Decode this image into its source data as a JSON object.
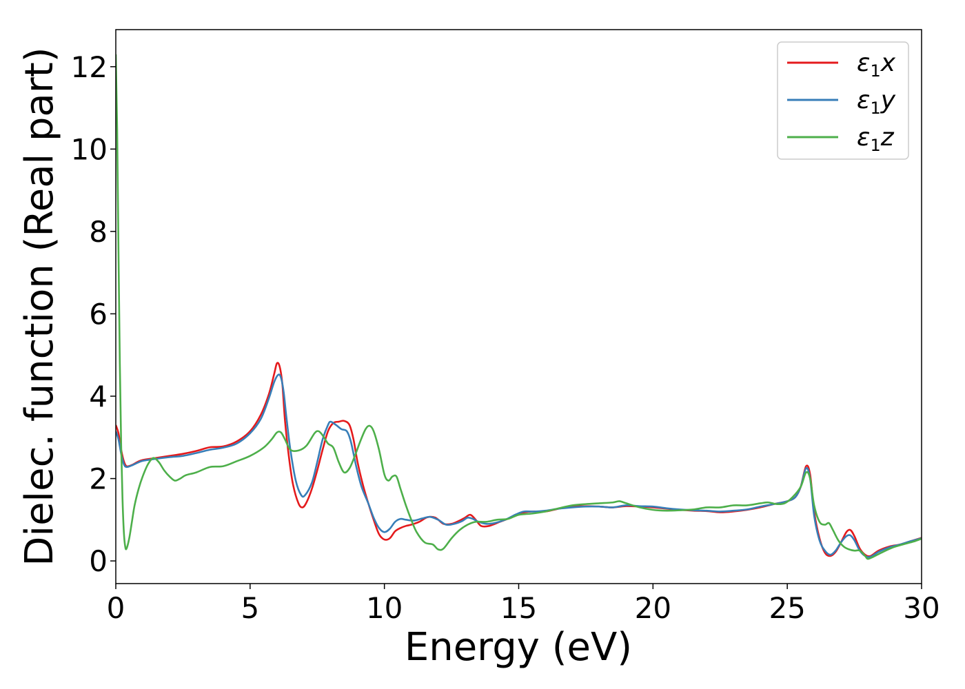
{
  "chart_data": {
    "type": "line",
    "xlabel": "Energy (eV)",
    "ylabel": "Dielec. function (Real part)",
    "xlim": [
      0,
      30
    ],
    "ylim": [
      -0.55,
      12.9
    ],
    "xticks": [
      0,
      5,
      10,
      15,
      20,
      25,
      30
    ],
    "yticks": [
      0,
      2,
      4,
      6,
      8,
      10,
      12
    ],
    "grid": false,
    "legend_position": "top-right",
    "series": [
      {
        "name": "ε1x",
        "symbol": "ε",
        "sub": "1",
        "suffix": "x",
        "color": "#e41a1c",
        "points": [
          [
            0,
            3.3
          ],
          [
            0.1,
            3.1
          ],
          [
            0.2,
            2.7
          ],
          [
            0.3,
            2.42
          ],
          [
            0.4,
            2.3
          ],
          [
            0.6,
            2.33
          ],
          [
            0.8,
            2.4
          ],
          [
            1.0,
            2.45
          ],
          [
            1.5,
            2.5
          ],
          [
            2,
            2.55
          ],
          [
            2.5,
            2.6
          ],
          [
            3,
            2.67
          ],
          [
            3.5,
            2.76
          ],
          [
            4,
            2.78
          ],
          [
            4.5,
            2.9
          ],
          [
            5,
            3.15
          ],
          [
            5.4,
            3.55
          ],
          [
            5.7,
            4.05
          ],
          [
            5.9,
            4.55
          ],
          [
            6.0,
            4.8
          ],
          [
            6.1,
            4.72
          ],
          [
            6.2,
            4.3
          ],
          [
            6.3,
            3.4
          ],
          [
            6.45,
            2.5
          ],
          [
            6.6,
            1.85
          ],
          [
            6.8,
            1.4
          ],
          [
            6.95,
            1.3
          ],
          [
            7.1,
            1.42
          ],
          [
            7.3,
            1.75
          ],
          [
            7.5,
            2.2
          ],
          [
            7.7,
            2.7
          ],
          [
            7.9,
            3.15
          ],
          [
            8.1,
            3.35
          ],
          [
            8.3,
            3.38
          ],
          [
            8.5,
            3.4
          ],
          [
            8.7,
            3.3
          ],
          [
            8.85,
            2.95
          ],
          [
            9.0,
            2.4
          ],
          [
            9.2,
            1.85
          ],
          [
            9.4,
            1.4
          ],
          [
            9.6,
            1.0
          ],
          [
            9.8,
            0.65
          ],
          [
            10.0,
            0.52
          ],
          [
            10.2,
            0.55
          ],
          [
            10.4,
            0.72
          ],
          [
            10.6,
            0.8
          ],
          [
            10.8,
            0.85
          ],
          [
            11.0,
            0.88
          ],
          [
            11.3,
            0.95
          ],
          [
            11.6,
            1.06
          ],
          [
            11.9,
            1.05
          ],
          [
            12.2,
            0.9
          ],
          [
            12.5,
            0.9
          ],
          [
            12.8,
            0.98
          ],
          [
            13.0,
            1.05
          ],
          [
            13.2,
            1.12
          ],
          [
            13.4,
            1.0
          ],
          [
            13.6,
            0.85
          ],
          [
            13.9,
            0.85
          ],
          [
            14.3,
            0.95
          ],
          [
            14.7,
            1.05
          ],
          [
            15.0,
            1.15
          ],
          [
            15.5,
            1.2
          ],
          [
            16,
            1.2
          ],
          [
            16.5,
            1.27
          ],
          [
            17,
            1.32
          ],
          [
            17.5,
            1.33
          ],
          [
            18,
            1.32
          ],
          [
            18.5,
            1.3
          ],
          [
            19,
            1.33
          ],
          [
            19.5,
            1.32
          ],
          [
            20,
            1.3
          ],
          [
            20.5,
            1.27
          ],
          [
            21,
            1.24
          ],
          [
            21.5,
            1.22
          ],
          [
            22,
            1.21
          ],
          [
            22.5,
            1.18
          ],
          [
            23,
            1.2
          ],
          [
            23.5,
            1.24
          ],
          [
            24,
            1.3
          ],
          [
            24.5,
            1.38
          ],
          [
            25,
            1.45
          ],
          [
            25.3,
            1.55
          ],
          [
            25.5,
            1.8
          ],
          [
            25.7,
            2.3
          ],
          [
            25.85,
            2.1
          ],
          [
            26.0,
            1.2
          ],
          [
            26.2,
            0.55
          ],
          [
            26.4,
            0.2
          ],
          [
            26.6,
            0.12
          ],
          [
            26.8,
            0.22
          ],
          [
            27.0,
            0.45
          ],
          [
            27.2,
            0.7
          ],
          [
            27.35,
            0.75
          ],
          [
            27.5,
            0.6
          ],
          [
            27.7,
            0.3
          ],
          [
            27.9,
            0.15
          ],
          [
            28.1,
            0.12
          ],
          [
            28.4,
            0.25
          ],
          [
            28.8,
            0.35
          ],
          [
            29.2,
            0.4
          ],
          [
            29.6,
            0.48
          ],
          [
            30,
            0.56
          ]
        ]
      },
      {
        "name": "ε1y",
        "symbol": "ε",
        "sub": "1",
        "suffix": "y",
        "color": "#377eb8",
        "points": [
          [
            0,
            3.15
          ],
          [
            0.1,
            2.95
          ],
          [
            0.2,
            2.6
          ],
          [
            0.3,
            2.35
          ],
          [
            0.4,
            2.28
          ],
          [
            0.6,
            2.32
          ],
          [
            0.8,
            2.38
          ],
          [
            1.0,
            2.43
          ],
          [
            1.5,
            2.48
          ],
          [
            2,
            2.52
          ],
          [
            2.5,
            2.55
          ],
          [
            3,
            2.62
          ],
          [
            3.5,
            2.7
          ],
          [
            4,
            2.75
          ],
          [
            4.5,
            2.85
          ],
          [
            5,
            3.1
          ],
          [
            5.4,
            3.45
          ],
          [
            5.7,
            3.95
          ],
          [
            5.9,
            4.35
          ],
          [
            6.05,
            4.52
          ],
          [
            6.15,
            4.45
          ],
          [
            6.25,
            4.1
          ],
          [
            6.35,
            3.5
          ],
          [
            6.5,
            2.7
          ],
          [
            6.7,
            1.95
          ],
          [
            6.9,
            1.6
          ],
          [
            7.05,
            1.6
          ],
          [
            7.3,
            1.9
          ],
          [
            7.5,
            2.4
          ],
          [
            7.7,
            2.95
          ],
          [
            7.9,
            3.3
          ],
          [
            8.0,
            3.38
          ],
          [
            8.2,
            3.3
          ],
          [
            8.4,
            3.2
          ],
          [
            8.6,
            3.15
          ],
          [
            8.75,
            2.9
          ],
          [
            8.95,
            2.3
          ],
          [
            9.15,
            1.8
          ],
          [
            9.4,
            1.4
          ],
          [
            9.6,
            1.05
          ],
          [
            9.8,
            0.8
          ],
          [
            10.0,
            0.7
          ],
          [
            10.2,
            0.78
          ],
          [
            10.4,
            0.95
          ],
          [
            10.6,
            1.02
          ],
          [
            10.8,
            1.0
          ],
          [
            11.1,
            0.98
          ],
          [
            11.4,
            1.03
          ],
          [
            11.7,
            1.07
          ],
          [
            12.0,
            1.0
          ],
          [
            12.3,
            0.88
          ],
          [
            12.6,
            0.9
          ],
          [
            12.9,
            0.97
          ],
          [
            13.1,
            1.05
          ],
          [
            13.3,
            1.02
          ],
          [
            13.5,
            0.95
          ],
          [
            13.8,
            0.9
          ],
          [
            14.1,
            0.92
          ],
          [
            14.5,
            1.0
          ],
          [
            14.9,
            1.13
          ],
          [
            15.2,
            1.2
          ],
          [
            15.6,
            1.2
          ],
          [
            16,
            1.22
          ],
          [
            16.5,
            1.27
          ],
          [
            17,
            1.3
          ],
          [
            17.5,
            1.32
          ],
          [
            18,
            1.32
          ],
          [
            18.5,
            1.3
          ],
          [
            19,
            1.35
          ],
          [
            19.5,
            1.33
          ],
          [
            20,
            1.32
          ],
          [
            20.5,
            1.28
          ],
          [
            21,
            1.25
          ],
          [
            21.5,
            1.23
          ],
          [
            22,
            1.22
          ],
          [
            22.5,
            1.2
          ],
          [
            23,
            1.22
          ],
          [
            23.5,
            1.25
          ],
          [
            24,
            1.32
          ],
          [
            24.5,
            1.38
          ],
          [
            25,
            1.45
          ],
          [
            25.3,
            1.55
          ],
          [
            25.5,
            1.8
          ],
          [
            25.7,
            2.25
          ],
          [
            25.85,
            2.0
          ],
          [
            26.0,
            1.1
          ],
          [
            26.2,
            0.5
          ],
          [
            26.4,
            0.25
          ],
          [
            26.6,
            0.15
          ],
          [
            26.8,
            0.25
          ],
          [
            27.0,
            0.45
          ],
          [
            27.2,
            0.6
          ],
          [
            27.35,
            0.62
          ],
          [
            27.5,
            0.5
          ],
          [
            27.7,
            0.25
          ],
          [
            27.9,
            0.12
          ],
          [
            28.1,
            0.1
          ],
          [
            28.4,
            0.22
          ],
          [
            28.8,
            0.33
          ],
          [
            29.2,
            0.4
          ],
          [
            29.6,
            0.48
          ],
          [
            30,
            0.55
          ]
        ]
      },
      {
        "name": "ε1z",
        "symbol": "ε",
        "sub": "1",
        "suffix": "z",
        "color": "#4daf4a",
        "points": [
          [
            0,
            12.3
          ],
          [
            0.05,
            10.5
          ],
          [
            0.1,
            7.5
          ],
          [
            0.15,
            4.8
          ],
          [
            0.2,
            2.8
          ],
          [
            0.25,
            1.5
          ],
          [
            0.3,
            0.7
          ],
          [
            0.35,
            0.35
          ],
          [
            0.4,
            0.3
          ],
          [
            0.5,
            0.55
          ],
          [
            0.6,
            0.95
          ],
          [
            0.7,
            1.35
          ],
          [
            0.85,
            1.75
          ],
          [
            1.0,
            2.05
          ],
          [
            1.2,
            2.35
          ],
          [
            1.4,
            2.5
          ],
          [
            1.6,
            2.4
          ],
          [
            1.8,
            2.2
          ],
          [
            2.0,
            2.05
          ],
          [
            2.2,
            1.95
          ],
          [
            2.4,
            2.0
          ],
          [
            2.6,
            2.08
          ],
          [
            3,
            2.15
          ],
          [
            3.5,
            2.28
          ],
          [
            4,
            2.3
          ],
          [
            4.5,
            2.42
          ],
          [
            5,
            2.55
          ],
          [
            5.5,
            2.75
          ],
          [
            5.8,
            2.95
          ],
          [
            6.0,
            3.12
          ],
          [
            6.15,
            3.12
          ],
          [
            6.3,
            2.95
          ],
          [
            6.5,
            2.7
          ],
          [
            6.8,
            2.68
          ],
          [
            7.1,
            2.8
          ],
          [
            7.4,
            3.1
          ],
          [
            7.55,
            3.15
          ],
          [
            7.7,
            3.05
          ],
          [
            7.9,
            2.85
          ],
          [
            8.1,
            2.75
          ],
          [
            8.3,
            2.4
          ],
          [
            8.5,
            2.15
          ],
          [
            8.7,
            2.25
          ],
          [
            8.9,
            2.55
          ],
          [
            9.1,
            2.9
          ],
          [
            9.3,
            3.2
          ],
          [
            9.45,
            3.28
          ],
          [
            9.6,
            3.15
          ],
          [
            9.8,
            2.7
          ],
          [
            10.0,
            2.1
          ],
          [
            10.15,
            1.95
          ],
          [
            10.3,
            2.05
          ],
          [
            10.45,
            2.05
          ],
          [
            10.6,
            1.75
          ],
          [
            10.8,
            1.35
          ],
          [
            11.0,
            1.0
          ],
          [
            11.2,
            0.7
          ],
          [
            11.5,
            0.45
          ],
          [
            11.8,
            0.4
          ],
          [
            12.0,
            0.28
          ],
          [
            12.2,
            0.3
          ],
          [
            12.5,
            0.55
          ],
          [
            12.8,
            0.75
          ],
          [
            13.1,
            0.88
          ],
          [
            13.4,
            0.95
          ],
          [
            13.8,
            0.95
          ],
          [
            14.2,
            1.0
          ],
          [
            14.6,
            1.02
          ],
          [
            15,
            1.12
          ],
          [
            15.5,
            1.15
          ],
          [
            16,
            1.2
          ],
          [
            16.5,
            1.28
          ],
          [
            17,
            1.35
          ],
          [
            17.5,
            1.38
          ],
          [
            18,
            1.4
          ],
          [
            18.5,
            1.42
          ],
          [
            18.75,
            1.45
          ],
          [
            19,
            1.4
          ],
          [
            19.5,
            1.3
          ],
          [
            20,
            1.24
          ],
          [
            20.5,
            1.22
          ],
          [
            21,
            1.23
          ],
          [
            21.5,
            1.25
          ],
          [
            22,
            1.3
          ],
          [
            22.5,
            1.3
          ],
          [
            23,
            1.35
          ],
          [
            23.5,
            1.35
          ],
          [
            24,
            1.4
          ],
          [
            24.3,
            1.42
          ],
          [
            24.6,
            1.38
          ],
          [
            24.9,
            1.4
          ],
          [
            25.2,
            1.55
          ],
          [
            25.5,
            1.8
          ],
          [
            25.7,
            2.15
          ],
          [
            25.85,
            2.0
          ],
          [
            26.0,
            1.35
          ],
          [
            26.2,
            0.95
          ],
          [
            26.4,
            0.88
          ],
          [
            26.55,
            0.92
          ],
          [
            26.7,
            0.75
          ],
          [
            26.9,
            0.5
          ],
          [
            27.1,
            0.35
          ],
          [
            27.3,
            0.28
          ],
          [
            27.5,
            0.25
          ],
          [
            27.7,
            0.25
          ],
          [
            27.9,
            0.12
          ],
          [
            28.0,
            0.05
          ],
          [
            28.2,
            0.1
          ],
          [
            28.5,
            0.2
          ],
          [
            28.9,
            0.32
          ],
          [
            29.3,
            0.4
          ],
          [
            29.7,
            0.47
          ],
          [
            30,
            0.54
          ]
        ]
      }
    ]
  }
}
